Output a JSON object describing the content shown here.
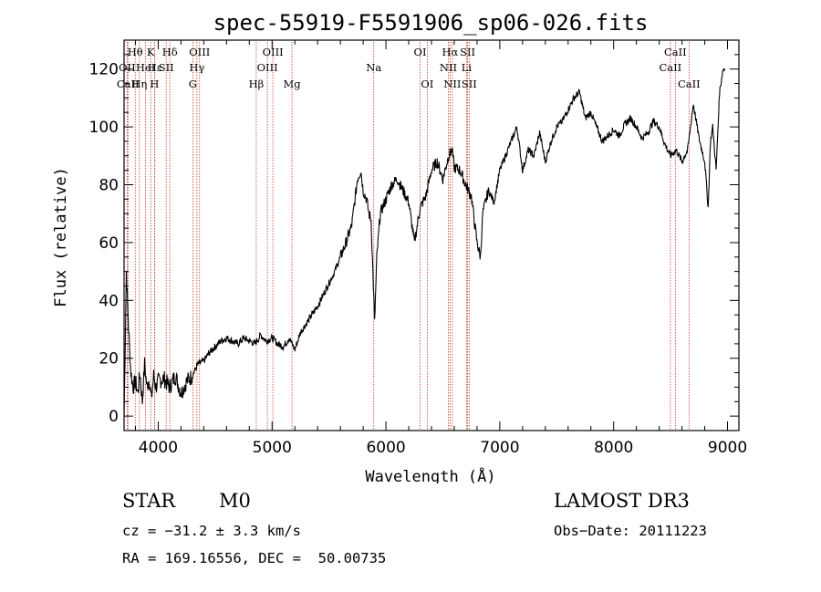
{
  "chart_data": {
    "type": "line",
    "title": "spec-55919-F5591906_sp06-026.fits",
    "xlabel": "Wavelength (Å)",
    "ylabel": "Flux (relative)",
    "xlim": [
      3700,
      9100
    ],
    "ylim": [
      -5,
      130
    ],
    "xticks": [
      4000,
      5000,
      6000,
      7000,
      8000,
      9000
    ],
    "yticks": [
      0,
      20,
      40,
      60,
      80,
      100,
      120
    ],
    "series": [
      {
        "name": "spectrum",
        "x": [
          3700,
          3720,
          3740,
          3760,
          3780,
          3800,
          3820,
          3840,
          3860,
          3880,
          3900,
          3920,
          3940,
          3960,
          3980,
          4000,
          4050,
          4100,
          4150,
          4200,
          4250,
          4300,
          4350,
          4400,
          4450,
          4500,
          4550,
          4600,
          4650,
          4700,
          4750,
          4800,
          4850,
          4900,
          4950,
          5000,
          5050,
          5100,
          5150,
          5200,
          5250,
          5300,
          5350,
          5400,
          5450,
          5500,
          5550,
          5600,
          5650,
          5700,
          5750,
          5780,
          5800,
          5830,
          5850,
          5870,
          5890,
          5900,
          5920,
          5950,
          6000,
          6050,
          6100,
          6150,
          6200,
          6250,
          6300,
          6350,
          6400,
          6450,
          6500,
          6550,
          6580,
          6600,
          6650,
          6700,
          6750,
          6800,
          6830,
          6850,
          6900,
          6950,
          7000,
          7050,
          7100,
          7150,
          7200,
          7250,
          7300,
          7350,
          7400,
          7450,
          7500,
          7550,
          7600,
          7650,
          7700,
          7750,
          7800,
          7850,
          7900,
          7950,
          8000,
          8050,
          8100,
          8150,
          8200,
          8250,
          8300,
          8350,
          8400,
          8450,
          8500,
          8550,
          8600,
          8650,
          8700,
          8750,
          8800,
          8830,
          8850,
          8870,
          8900,
          8930,
          8960,
          8980
        ],
        "values": [
          0,
          50,
          30,
          15,
          10,
          12,
          8,
          15,
          5,
          18,
          10,
          13,
          6,
          14,
          10,
          12,
          13,
          10,
          14,
          8,
          12,
          14,
          18,
          19,
          22,
          24,
          26,
          27,
          26,
          25,
          27,
          26,
          25,
          28,
          26,
          27,
          25,
          24,
          27,
          23,
          29,
          32,
          35,
          38,
          42,
          46,
          50,
          55,
          60,
          66,
          82,
          85,
          78,
          75,
          70,
          68,
          45,
          32,
          55,
          70,
          75,
          80,
          82,
          78,
          74,
          60,
          72,
          76,
          85,
          88,
          82,
          90,
          92,
          86,
          85,
          80,
          76,
          60,
          55,
          70,
          78,
          74,
          85,
          90,
          95,
          100,
          85,
          92,
          90,
          98,
          88,
          95,
          100,
          102,
          106,
          110,
          112,
          103,
          105,
          100,
          95,
          97,
          99,
          97,
          101,
          103,
          100,
          96,
          98,
          102,
          100,
          94,
          90,
          92,
          88,
          92,
          108,
          96,
          88,
          72,
          95,
          100,
          85,
          112,
          120,
          120
        ]
      }
    ],
    "lines": [
      {
        "name": "Hθ",
        "wl": 3798,
        "row": 0,
        "label": "Hθ"
      },
      {
        "name": "OII",
        "wl": 3727,
        "row": 1,
        "label": "OII"
      },
      {
        "name": "CaII",
        "wl": 3734,
        "row": 2,
        "label": "CaII"
      },
      {
        "name": "K",
        "wl": 3934,
        "row": 0,
        "label": "K"
      },
      {
        "name": "Hε",
        "wl": 3970,
        "row": 1,
        "label": "Hε"
      },
      {
        "name": "HeI",
        "wl": 3889,
        "row": 1,
        "label": "HeI"
      },
      {
        "name": "Hη",
        "wl": 3835,
        "row": 2,
        "label": "Hη"
      },
      {
        "name": "H",
        "wl": 3968,
        "row": 2,
        "label": "H"
      },
      {
        "name": "SII",
        "wl": 4070,
        "row": 1,
        "label": "SII"
      },
      {
        "name": "Hδ",
        "wl": 4102,
        "row": 0,
        "label": "Hδ"
      },
      {
        "name": "OIII_1",
        "wl": 4363,
        "row": 0,
        "label": "OIII"
      },
      {
        "name": "Hγ",
        "wl": 4340,
        "row": 1,
        "label": "Hγ"
      },
      {
        "name": "G",
        "wl": 4304,
        "row": 2,
        "label": "G"
      },
      {
        "name": "Hβ",
        "wl": 4861,
        "row": 2,
        "label": "Hβ"
      },
      {
        "name": "OIII_2",
        "wl": 5007,
        "row": 0,
        "label": "OIII"
      },
      {
        "name": "OIII_3",
        "wl": 4959,
        "row": 1,
        "label": "OIII"
      },
      {
        "name": "Mg",
        "wl": 5175,
        "row": 2,
        "label": "Mg"
      },
      {
        "name": "Na",
        "wl": 5893,
        "row": 1,
        "label": "Na"
      },
      {
        "name": "OI_1",
        "wl": 6300,
        "row": 0,
        "label": "OI"
      },
      {
        "name": "OI_2",
        "wl": 6363,
        "row": 2,
        "label": "OI"
      },
      {
        "name": "Hα",
        "wl": 6563,
        "row": 0,
        "label": "Hα"
      },
      {
        "name": "NII_1",
        "wl": 6548,
        "row": 1,
        "label": "NII"
      },
      {
        "name": "NII_2",
        "wl": 6583,
        "row": 2,
        "label": "NII"
      },
      {
        "name": "SII_1",
        "wl": 6717,
        "row": 0,
        "label": "SII"
      },
      {
        "name": "Li",
        "wl": 6708,
        "row": 1,
        "label": "Li"
      },
      {
        "name": "SII_2",
        "wl": 6731,
        "row": 2,
        "label": "SII"
      },
      {
        "name": "CaII_1",
        "wl": 8498,
        "row": 1,
        "label": "CaII"
      },
      {
        "name": "CaII_2",
        "wl": 8542,
        "row": 0,
        "label": "CaII"
      },
      {
        "name": "CaII_3",
        "wl": 8662,
        "row": 2,
        "label": "CaII"
      }
    ]
  },
  "info": {
    "class": "STAR",
    "subclass": "M0",
    "cz": "cz = −31.2 ± 3.3 km/s",
    "coords": "RA = 169.16556, DEC =  50.00735",
    "survey": "LAMOST DR3",
    "obsdate": "Obs−Date: 20111223"
  },
  "colors": {
    "spectrum": "#000000",
    "line_marker": "#c0392b",
    "axis": "#000000"
  }
}
